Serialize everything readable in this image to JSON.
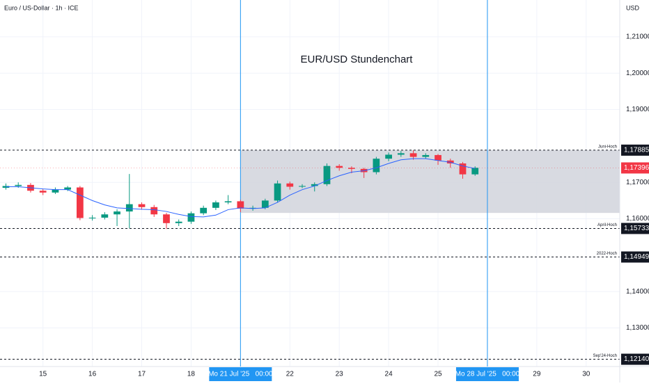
{
  "chart_data": {
    "type": "candlestick",
    "header": "Euro / US-Dollar · 1h · ICE",
    "currency": "USD",
    "title": "EUR/USD Stundenchart",
    "xlim": [
      0.13,
      12.68
    ],
    "ylim": [
      1.1194,
      1.2201
    ],
    "xticks": [
      {
        "value": 1,
        "label": "15"
      },
      {
        "value": 2,
        "label": "16"
      },
      {
        "value": 3,
        "label": "17"
      },
      {
        "value": 4,
        "label": "18"
      },
      {
        "value": 5,
        "label": "Mo 21 Jul '25   00:00"
      },
      {
        "value": 6,
        "label": "22"
      },
      {
        "value": 7,
        "label": "23"
      },
      {
        "value": 8,
        "label": "24"
      },
      {
        "value": 9,
        "label": "25"
      },
      {
        "value": 10,
        "label": "Mo 28 Jul '25   00:00"
      },
      {
        "value": 11,
        "label": "29"
      },
      {
        "value": 12,
        "label": "30"
      }
    ],
    "marked_xticks": [
      4,
      9
    ],
    "yticks": [
      {
        "value": 1.21,
        "label": "1,21000"
      },
      {
        "value": 1.2,
        "label": "1,20000"
      },
      {
        "value": 1.19,
        "label": "1,19000"
      },
      {
        "value": 1.17,
        "label": "1,17000"
      },
      {
        "value": 1.16,
        "label": "1,16000"
      },
      {
        "value": 1.14,
        "label": "1,14000"
      },
      {
        "value": 1.13,
        "label": "1,13000"
      }
    ],
    "grid": true,
    "up_color": "#089981",
    "down_color": "#f23645",
    "candles": {
      "x": [
        0.25,
        0.5,
        0.75,
        1.0,
        1.25,
        1.5,
        1.75,
        2.0,
        2.25,
        2.5,
        2.75,
        3.0,
        3.25,
        3.5,
        3.75,
        4.0,
        4.25,
        4.5,
        4.75,
        5.0,
        5.25,
        5.5,
        5.75,
        6.0,
        6.25,
        6.5,
        6.75,
        7.0,
        7.25,
        7.5,
        7.75,
        8.0,
        8.25,
        8.5,
        8.75,
        9.0,
        9.25,
        9.5,
        9.75
      ],
      "open": [
        1.1685,
        1.169,
        1.1693,
        1.1677,
        1.1672,
        1.168,
        1.1686,
        1.1602,
        1.1603,
        1.1612,
        1.162,
        1.164,
        1.1632,
        1.1612,
        1.1588,
        1.1592,
        1.1615,
        1.163,
        1.1645,
        1.1648,
        1.1628,
        1.163,
        1.165,
        1.1697,
        1.1688,
        1.169,
        1.1695,
        1.1745,
        1.174,
        1.1737,
        1.1728,
        1.1765,
        1.1776,
        1.178,
        1.177,
        1.1775,
        1.176,
        1.1752,
        1.1722
      ],
      "high": [
        1.1697,
        1.17,
        1.1698,
        1.1682,
        1.1686,
        1.169,
        1.169,
        1.161,
        1.1618,
        1.1626,
        1.1723,
        1.1645,
        1.1638,
        1.1616,
        1.1598,
        1.162,
        1.1636,
        1.165,
        1.1665,
        1.1652,
        1.1636,
        1.1655,
        1.1705,
        1.1702,
        1.1695,
        1.17,
        1.1752,
        1.175,
        1.1744,
        1.174,
        1.177,
        1.1782,
        1.1786,
        1.1788,
        1.178,
        1.1778,
        1.1765,
        1.1756,
        1.1744
      ],
      "low": [
        1.168,
        1.1685,
        1.1672,
        1.1665,
        1.1668,
        1.1676,
        1.1596,
        1.1595,
        1.1598,
        1.158,
        1.1574,
        1.1625,
        1.1605,
        1.1572,
        1.158,
        1.1586,
        1.161,
        1.1624,
        1.164,
        1.1618,
        1.1622,
        1.1626,
        1.1645,
        1.168,
        1.1684,
        1.1675,
        1.169,
        1.1732,
        1.1725,
        1.1712,
        1.1722,
        1.1758,
        1.177,
        1.1762,
        1.1765,
        1.1748,
        1.174,
        1.171,
        1.1718
      ],
      "close": [
        1.169,
        1.1693,
        1.1677,
        1.1672,
        1.168,
        1.1686,
        1.1602,
        1.1603,
        1.1612,
        1.162,
        1.164,
        1.1632,
        1.1612,
        1.1588,
        1.1592,
        1.1615,
        1.163,
        1.1645,
        1.1648,
        1.1628,
        1.163,
        1.165,
        1.1697,
        1.1688,
        1.169,
        1.1695,
        1.1745,
        1.174,
        1.1737,
        1.1728,
        1.1765,
        1.1776,
        1.178,
        1.177,
        1.1775,
        1.176,
        1.1752,
        1.1722,
        1.174
      ]
    },
    "moving_average": {
      "color": "#2962ff",
      "values": [
        1.1688,
        1.1688,
        1.1685,
        1.1682,
        1.168,
        1.168,
        1.1665,
        1.165,
        1.1638,
        1.163,
        1.1628,
        1.1626,
        1.1625,
        1.162,
        1.1612,
        1.1606,
        1.1605,
        1.161,
        1.1625,
        1.163,
        1.1628,
        1.163,
        1.1645,
        1.1665,
        1.168,
        1.169,
        1.1705,
        1.1718,
        1.1728,
        1.1732,
        1.174,
        1.1752,
        1.1762,
        1.1765,
        1.1765,
        1.176,
        1.1755,
        1.1745,
        1.1738
      ]
    },
    "highlight": {
      "x": 5,
      "ylim": [
        1.1616,
        1.17885
      ],
      "color": "#d1d4dc"
    },
    "levels": [
      {
        "value": 1.17885,
        "label": "1,17885",
        "name": "Juni-Hoch"
      },
      {
        "value": 1.15733,
        "label": "1,15733",
        "name": "April-Hoch"
      },
      {
        "value": 1.14949,
        "label": "1,14949",
        "name": "2022-Hoch"
      },
      {
        "value": 1.1214,
        "label": "1,12140",
        "name": "Sep'24-Hoch"
      }
    ],
    "last_price": {
      "value": 1.17396,
      "label": "1,17396",
      "color": "#f23645"
    },
    "marker_color": "#2196f3"
  }
}
